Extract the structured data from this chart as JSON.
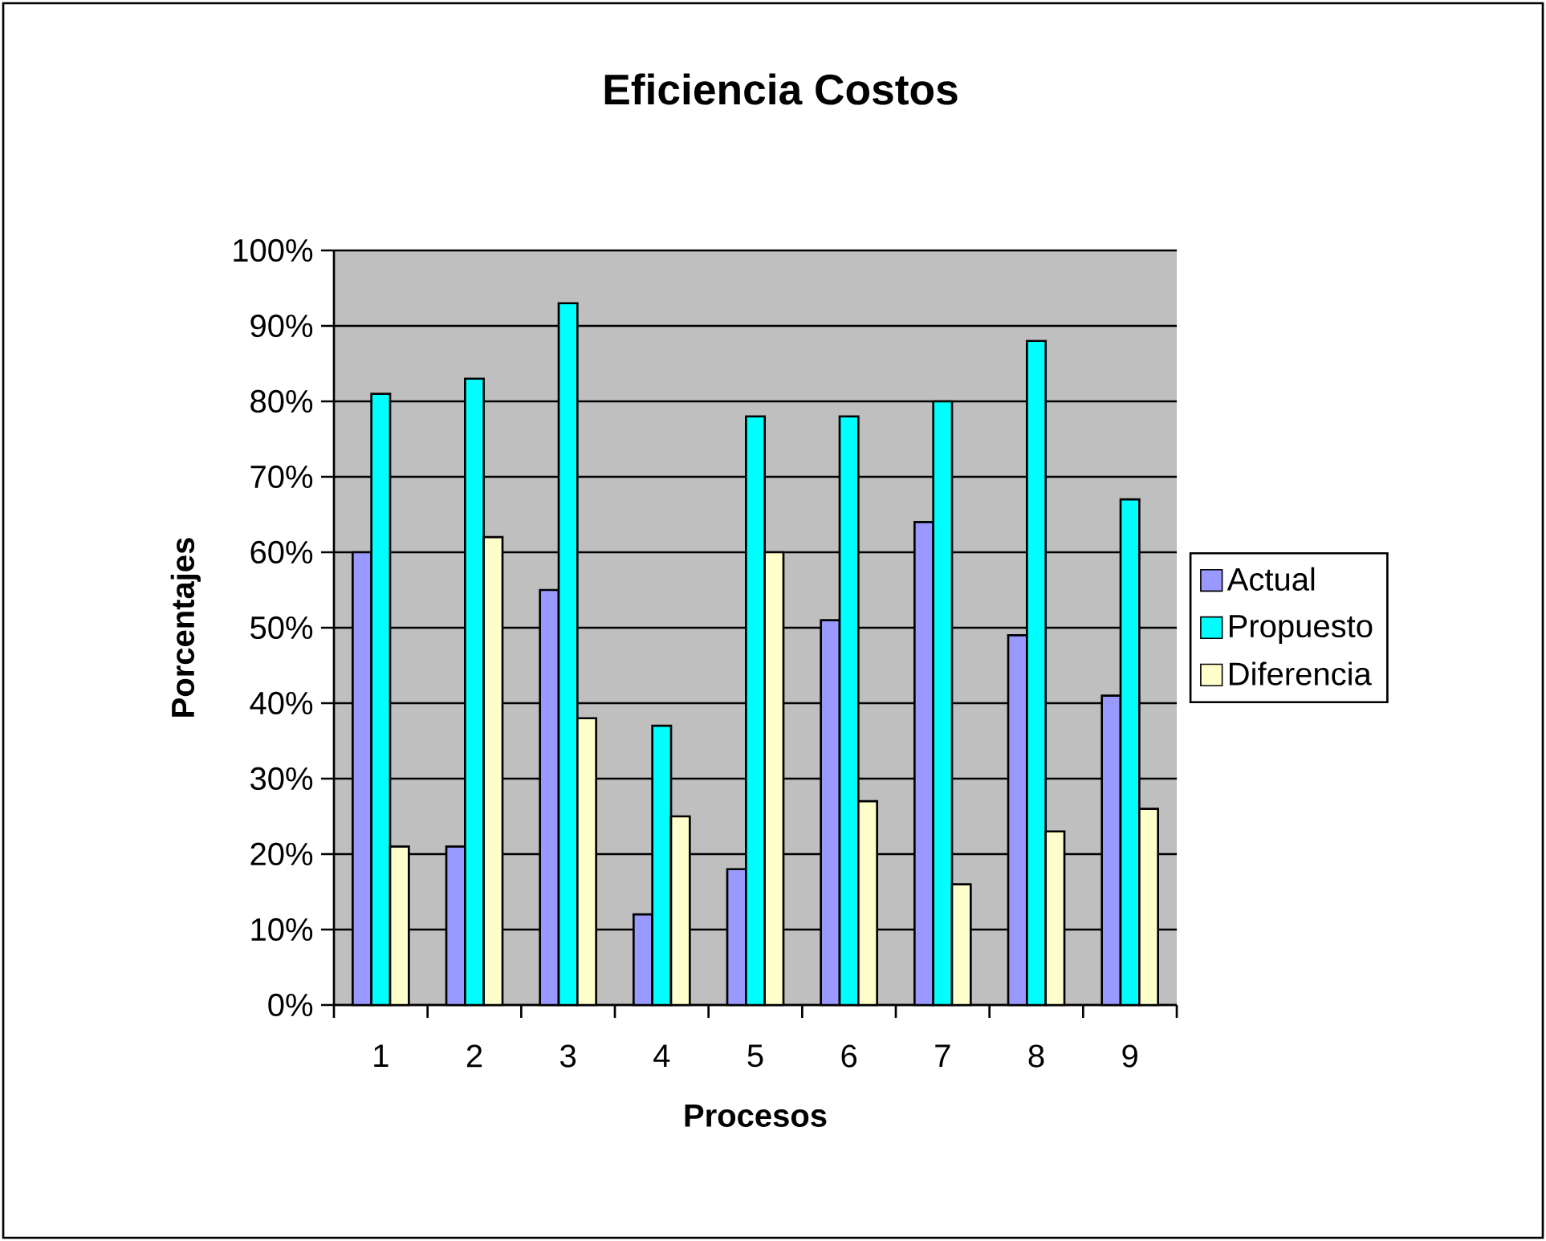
{
  "chart_data": {
    "type": "bar",
    "title": "Eficiencia Costos",
    "xlabel": "Procesos",
    "ylabel": "Porcentajes",
    "categories": [
      "1",
      "2",
      "3",
      "4",
      "5",
      "6",
      "7",
      "8",
      "9"
    ],
    "series": [
      {
        "name": "Actual",
        "color": "#9999ff",
        "values": [
          60,
          21,
          55,
          12,
          18,
          51,
          64,
          49,
          41
        ]
      },
      {
        "name": "Propuesto",
        "color": "#00ffff",
        "values": [
          81,
          83,
          93,
          37,
          78,
          78,
          80,
          88,
          67
        ]
      },
      {
        "name": "Diferencia",
        "color": "#ffffcc",
        "values": [
          21,
          62,
          38,
          25,
          60,
          27,
          16,
          23,
          26
        ]
      }
    ],
    "ylim": [
      0,
      100
    ],
    "yticks": [
      {
        "value": 0,
        "label": "0%"
      },
      {
        "value": 10,
        "label": "10%"
      },
      {
        "value": 20,
        "label": "20%"
      },
      {
        "value": 30,
        "label": "30%"
      },
      {
        "value": 40,
        "label": "40%"
      },
      {
        "value": 50,
        "label": "50%"
      },
      {
        "value": 60,
        "label": "60%"
      },
      {
        "value": 70,
        "label": "70%"
      },
      {
        "value": 80,
        "label": "80%"
      },
      {
        "value": 90,
        "label": "90%"
      },
      {
        "value": 100,
        "label": "100%"
      }
    ],
    "grid": "y",
    "legend": "right"
  }
}
